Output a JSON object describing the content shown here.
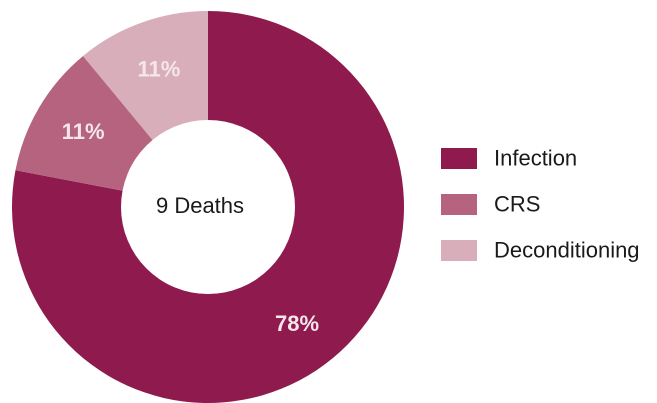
{
  "chart_data": {
    "type": "pie",
    "variant": "donut",
    "center_text": "9 Deaths",
    "slices": [
      {
        "name": "Infection",
        "value": 78,
        "label": "78%",
        "color": "#8e1a4e"
      },
      {
        "name": "CRS",
        "value": 11,
        "label": "11%",
        "color": "#b5637e"
      },
      {
        "name": "Deconditioning",
        "value": 11,
        "label": "11%",
        "color": "#d9aebb"
      }
    ],
    "legend_position": "right",
    "start_angle": "12 o'clock",
    "direction": "clockwise"
  }
}
